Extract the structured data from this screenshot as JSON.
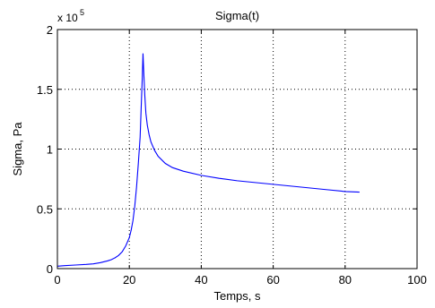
{
  "chart_data": {
    "type": "line",
    "title": "Sigma(t)",
    "xlabel": "Temps, s",
    "ylabel": "Sigma, Pa",
    "y_multiplier_base": "x 10",
    "y_multiplier_exponent": "5",
    "xlim": [
      0,
      100
    ],
    "ylim": [
      0,
      2
    ],
    "x_ticks": [
      0,
      20,
      40,
      60,
      80,
      100
    ],
    "x_tick_labels": [
      "0",
      "20",
      "40",
      "60",
      "80",
      "100"
    ],
    "y_ticks": [
      0,
      0.5,
      1,
      1.5,
      2
    ],
    "y_tick_labels": [
      "0",
      "0.5",
      "1",
      "1.5",
      "2"
    ],
    "grid": true,
    "colors": {
      "line": "#0000ff",
      "axes": "#000000",
      "grid": "#000000",
      "background": "#ffffff"
    },
    "series": [
      {
        "x": [
          0,
          2,
          5,
          8,
          10,
          12,
          14,
          15,
          16,
          17,
          18,
          19,
          20,
          20.5,
          21,
          21.5,
          22,
          22.5,
          23,
          23.3,
          23.6,
          23.8,
          24,
          24.3,
          24.6,
          25,
          25.5,
          26,
          27,
          28,
          30,
          32,
          35,
          40,
          45,
          50,
          55,
          60,
          65,
          70,
          75,
          80,
          84
        ],
        "y": [
          0.02,
          0.025,
          0.03,
          0.035,
          0.04,
          0.05,
          0.065,
          0.075,
          0.09,
          0.11,
          0.14,
          0.19,
          0.26,
          0.32,
          0.4,
          0.52,
          0.68,
          0.88,
          1.1,
          1.35,
          1.6,
          1.8,
          1.65,
          1.45,
          1.3,
          1.2,
          1.12,
          1.06,
          0.99,
          0.94,
          0.88,
          0.845,
          0.815,
          0.78,
          0.755,
          0.735,
          0.72,
          0.705,
          0.69,
          0.675,
          0.66,
          0.645,
          0.64
        ]
      }
    ]
  }
}
